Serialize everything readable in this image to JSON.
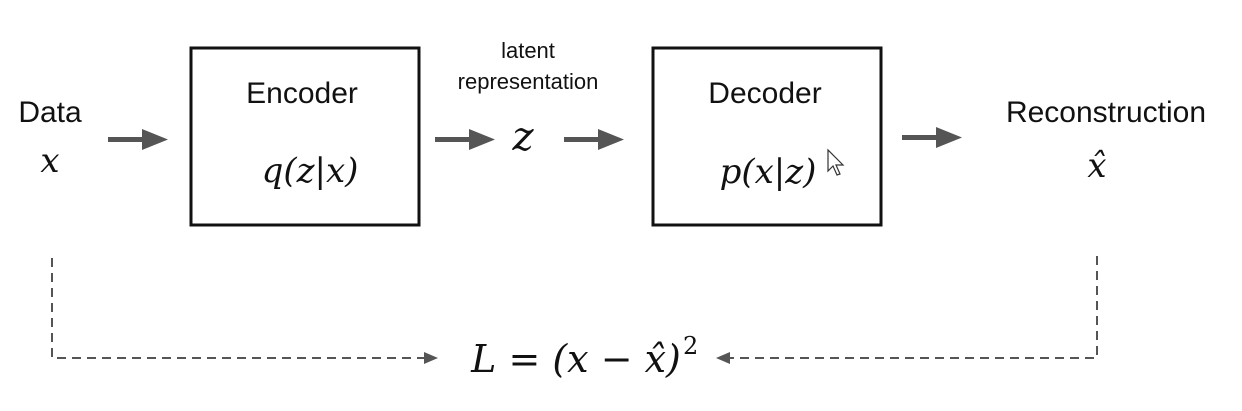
{
  "input": {
    "label": "Data",
    "symbol": "x"
  },
  "encoder": {
    "title": "Encoder",
    "formula": "q(z|x)"
  },
  "latent": {
    "label_line1": "latent",
    "label_line2": "representation",
    "symbol": "z"
  },
  "decoder": {
    "title": "Decoder",
    "formula": "p(x|z)"
  },
  "output": {
    "label": "Reconstruction",
    "symbol": "x̂"
  },
  "loss": {
    "formula": "L = (x − x̂)",
    "exponent": "2"
  },
  "colors": {
    "box_stroke": "#111111",
    "arrow": "#555555",
    "background": "#ffffff"
  }
}
